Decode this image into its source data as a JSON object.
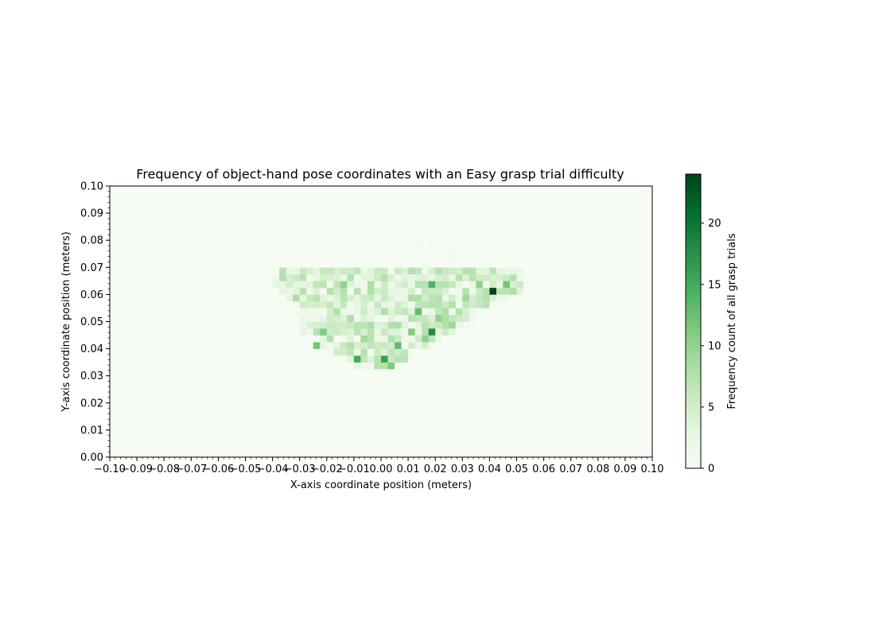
{
  "chart_data": {
    "type": "heatmap",
    "title": "Frequency of object-hand pose coordinates with an Easy grasp trial difficulty",
    "xlabel": "X-axis coordinate position (meters)",
    "ylabel": "Y-axis coordinate position (meters)",
    "xlim": [
      -0.1,
      0.1
    ],
    "ylim": [
      0.0,
      0.1
    ],
    "bin_size": 0.0025,
    "x_ticks": [
      -0.1,
      -0.09,
      -0.08,
      -0.07,
      -0.06,
      -0.05,
      -0.04,
      -0.03,
      -0.02,
      -0.01,
      0.0,
      0.01,
      0.02,
      0.03,
      0.04,
      0.05,
      0.06,
      0.07,
      0.08,
      0.09,
      0.1
    ],
    "x_tick_labels": [
      "−0.10",
      "−0.09",
      "−0.08",
      "−0.07",
      "−0.06",
      "−0.05",
      "−0.04",
      "−0.03",
      "−0.02",
      "−0.01",
      "0.00",
      "0.01",
      "0.02",
      "0.03",
      "0.04",
      "0.05",
      "0.06",
      "0.07",
      "0.08",
      "0.09",
      "0.10"
    ],
    "y_ticks": [
      0.0,
      0.01,
      0.02,
      0.03,
      0.04,
      0.05,
      0.06,
      0.07,
      0.08,
      0.09,
      0.1
    ],
    "y_tick_labels": [
      "0.00",
      "0.01",
      "0.02",
      "0.03",
      "0.04",
      "0.05",
      "0.06",
      "0.07",
      "0.08",
      "0.09",
      "0.10"
    ],
    "colormap": "Greens",
    "colorbar": {
      "label": "Frequency count of all grasp trials",
      "min": 0,
      "max": 24,
      "ticks": [
        0,
        5,
        10,
        15,
        20
      ],
      "tick_labels": [
        "0",
        "5",
        "10",
        "15",
        "20"
      ]
    },
    "background_value": 0.2,
    "region": {
      "description_rows": [
        {
          "y": 0.0675,
          "x_min": -0.04,
          "x_max": 0.05
        },
        {
          "y": 0.065,
          "x_min": -0.04,
          "x_max": 0.052
        },
        {
          "y": 0.0625,
          "x_min": -0.038,
          "x_max": 0.054
        },
        {
          "y": 0.06,
          "x_min": -0.036,
          "x_max": 0.05
        },
        {
          "y": 0.0575,
          "x_min": -0.034,
          "x_max": 0.046
        },
        {
          "y": 0.055,
          "x_min": -0.032,
          "x_max": 0.04
        },
        {
          "y": 0.0525,
          "x_min": -0.031,
          "x_max": 0.036
        },
        {
          "y": 0.05,
          "x_min": -0.03,
          "x_max": 0.034
        },
        {
          "y": 0.0475,
          "x_min": -0.03,
          "x_max": 0.03
        },
        {
          "y": 0.045,
          "x_min": -0.03,
          "x_max": 0.026
        },
        {
          "y": 0.0425,
          "x_min": -0.024,
          "x_max": 0.022
        },
        {
          "y": 0.04,
          "x_min": -0.022,
          "x_max": 0.018
        },
        {
          "y": 0.0375,
          "x_min": -0.018,
          "x_max": 0.01
        },
        {
          "y": 0.035,
          "x_min": -0.012,
          "x_max": 0.01
        },
        {
          "y": 0.0325,
          "x_min": -0.01,
          "x_max": 0.004
        }
      ]
    },
    "hotspots": [
      {
        "x": 0.04125,
        "y": 0.06125,
        "value": 24
      },
      {
        "x": 0.01875,
        "y": 0.04625,
        "value": 18
      },
      {
        "x": 0.00125,
        "y": 0.03625,
        "value": 16
      },
      {
        "x": -0.00875,
        "y": 0.03625,
        "value": 15
      },
      {
        "x": 0.01875,
        "y": 0.06375,
        "value": 14
      },
      {
        "x": 0.04625,
        "y": 0.06375,
        "value": 12
      },
      {
        "x": 0.00625,
        "y": 0.04125,
        "value": 13
      },
      {
        "x": 0.01375,
        "y": 0.05375,
        "value": 13
      },
      {
        "x": 0.01125,
        "y": 0.04625,
        "value": 11
      },
      {
        "x": -0.02375,
        "y": 0.04125,
        "value": 12
      },
      {
        "x": -0.02125,
        "y": 0.04625,
        "value": 11
      },
      {
        "x": 0.03625,
        "y": 0.06375,
        "value": 10
      },
      {
        "x": -0.01375,
        "y": 0.06375,
        "value": 10
      },
      {
        "x": 0.00375,
        "y": 0.03375,
        "value": 11
      },
      {
        "x": 0.02125,
        "y": 0.05125,
        "value": 10
      },
      {
        "x": 0.02625,
        "y": 0.04875,
        "value": 9
      },
      {
        "x": 0.01625,
        "y": 0.04375,
        "value": 10
      },
      {
        "x": -0.00625,
        "y": 0.04375,
        "value": 9
      },
      {
        "x": -0.03125,
        "y": 0.05875,
        "value": 8
      },
      {
        "x": 0.03125,
        "y": 0.05875,
        "value": 9
      }
    ],
    "stray_points": [
      {
        "x": -0.03375,
        "y": 0.07625,
        "value": 1
      },
      {
        "x": -0.01625,
        "y": 0.07625,
        "value": 1
      },
      {
        "x": 0.01375,
        "y": 0.07875,
        "value": 1
      },
      {
        "x": 0.01875,
        "y": 0.07875,
        "value": 1
      },
      {
        "x": 0.02625,
        "y": 0.07625,
        "value": 1
      },
      {
        "x": 0.02625,
        "y": 0.07375,
        "value": 1
      },
      {
        "x": 0.01625,
        "y": 0.07125,
        "value": 1
      },
      {
        "x": -0.04125,
        "y": 0.07125,
        "value": 1
      }
    ]
  }
}
